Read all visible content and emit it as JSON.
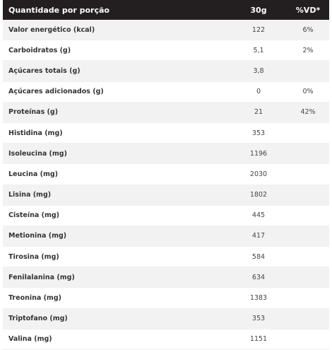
{
  "header": {
    "name_label": "Quantidade por porção",
    "qty_label": "30g",
    "vd_label": "%VD*"
  },
  "rows": [
    {
      "name": "Valor energético (kcal)",
      "qty": "122",
      "vd": "6%"
    },
    {
      "name": "Carboidratos (g)",
      "qty": "5,1",
      "vd": "2%"
    },
    {
      "name": "Açúcares totais (g)",
      "qty": "3,8",
      "vd": ""
    },
    {
      "name": "Açúcares adicionados (g)",
      "qty": "0",
      "vd": "0%"
    },
    {
      "name": "Proteínas (g)",
      "qty": "21",
      "vd": "42%"
    },
    {
      "name": "Histidina (mg)",
      "qty": "353",
      "vd": ""
    },
    {
      "name": "Isoleucina (mg)",
      "qty": "1196",
      "vd": ""
    },
    {
      "name": "Leucina (mg)",
      "qty": "2030",
      "vd": ""
    },
    {
      "name": "Lisina (mg)",
      "qty": "1802",
      "vd": ""
    },
    {
      "name": "Cisteína (mg)",
      "qty": "445",
      "vd": ""
    },
    {
      "name": "Metionina (mg)",
      "qty": "417",
      "vd": ""
    },
    {
      "name": "Tirosina (mg)",
      "qty": "584",
      "vd": ""
    },
    {
      "name": "Fenilalanina (mg)",
      "qty": "634",
      "vd": ""
    },
    {
      "name": "Treonina (mg)",
      "qty": "1383",
      "vd": ""
    },
    {
      "name": "Triptofano (mg)",
      "qty": "353",
      "vd": ""
    },
    {
      "name": "Valina (mg)",
      "qty": "1151",
      "vd": ""
    }
  ]
}
